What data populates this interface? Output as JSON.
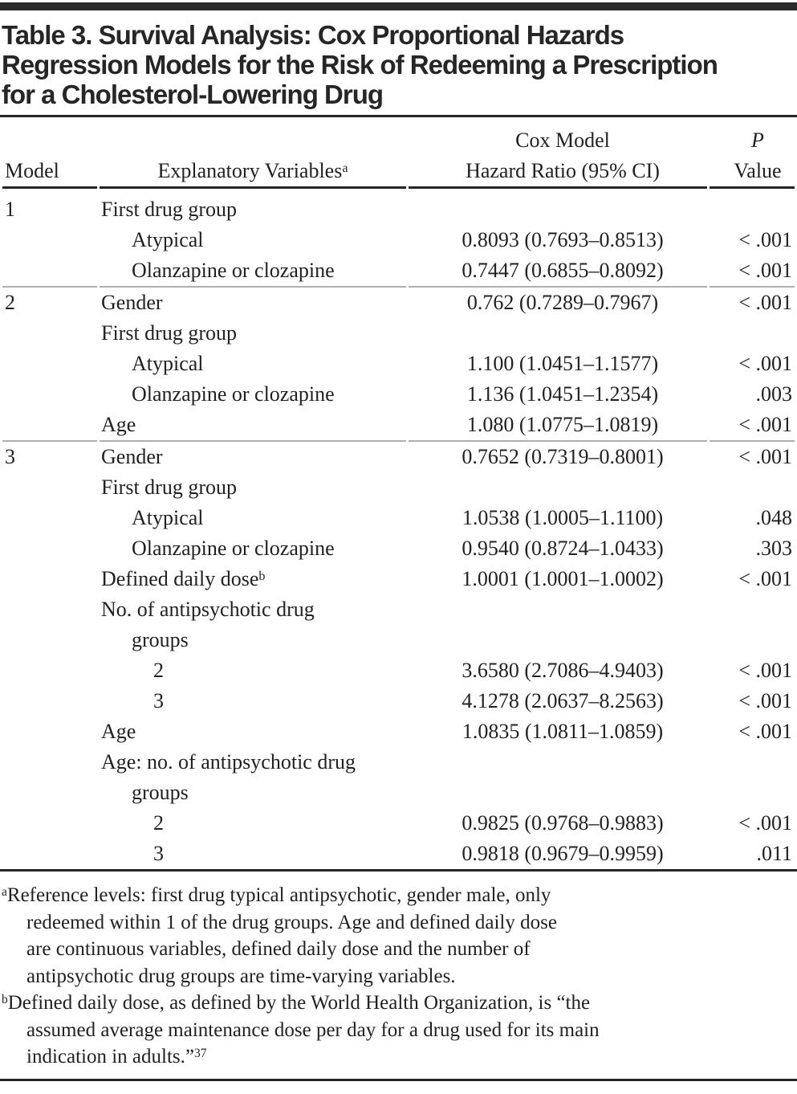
{
  "colors": {
    "text": "#231f20",
    "title": "#262626",
    "rule-dark": "#262626",
    "rule-gray": "#b0b0b0",
    "bar": "#2a2a2a",
    "bg": "#ffffff"
  },
  "table": {
    "title_lines": [
      "Table 3. Survival Analysis: Cox Proportional Hazards",
      "Regression Models for the Risk of Redeeming a Prescription",
      "for a Cholesterol-Lowering Drug"
    ],
    "header": {
      "group_hr": "Cox Model",
      "group_p": "P",
      "col_model": "Model",
      "col_vars": "Explanatory Variables",
      "col_vars_sup": "a",
      "col_hr": "Hazard Ratio (95% CI)",
      "col_p": "Value"
    },
    "rows": [
      {
        "model": "1",
        "label": "First drug group",
        "indent": 0,
        "hr": "",
        "p": "",
        "sep_after": false
      },
      {
        "model": "",
        "label": "Atypical",
        "indent": 1,
        "hr": "0.8093 (0.7693–0.8513)",
        "p": "< .001",
        "sep_after": false
      },
      {
        "model": "",
        "label": "Olanzapine or clozapine",
        "indent": 1,
        "hr": "0.7447 (0.6855–0.8092)",
        "p": "< .001",
        "sep_after": true
      },
      {
        "model": "2",
        "label": "Gender",
        "indent": 0,
        "hr": "0.762 (0.7289–0.7967)",
        "p": "< .001",
        "sep_after": false
      },
      {
        "model": "",
        "label": "First drug group",
        "indent": 0,
        "hr": "",
        "p": "",
        "sep_after": false
      },
      {
        "model": "",
        "label": "Atypical",
        "indent": 1,
        "hr": "1.100 (1.0451–1.1577)",
        "p": "< .001",
        "sep_after": false
      },
      {
        "model": "",
        "label": "Olanzapine or clozapine",
        "indent": 1,
        "hr": "1.136 (1.0451–1.2354)",
        "p": ".003",
        "sep_after": false
      },
      {
        "model": "",
        "label": "Age",
        "indent": 0,
        "hr": "1.080 (1.0775–1.0819)",
        "p": "< .001",
        "sep_after": true
      },
      {
        "model": "3",
        "label": "Gender",
        "indent": 0,
        "hr": "0.7652 (0.7319–0.8001)",
        "p": "< .001",
        "sep_after": false
      },
      {
        "model": "",
        "label": "First drug group",
        "indent": 0,
        "hr": "",
        "p": "",
        "sep_after": false
      },
      {
        "model": "",
        "label": "Atypical",
        "indent": 1,
        "hr": "1.0538 (1.0005–1.1100)",
        "p": ".048",
        "sep_after": false
      },
      {
        "model": "",
        "label": "Olanzapine or clozapine",
        "indent": 1,
        "hr": "0.9540 (0.8724–1.0433)",
        "p": ".303",
        "sep_after": false
      },
      {
        "model": "",
        "label": "Defined daily dose",
        "sup": "b",
        "indent": 0,
        "hr": "1.0001 (1.0001–1.0002)",
        "p": "< .001",
        "sep_after": false
      },
      {
        "model": "",
        "label": "No. of antipsychotic drug",
        "indent": 0,
        "hr": "",
        "p": "",
        "sep_after": false
      },
      {
        "model": "",
        "label": "groups",
        "indent": 1,
        "hr": "",
        "p": "",
        "sep_after": false
      },
      {
        "model": "",
        "label": "2",
        "indent": 2,
        "hr": "3.6580 (2.7086–4.9403)",
        "p": "< .001",
        "sep_after": false
      },
      {
        "model": "",
        "label": "3",
        "indent": 2,
        "hr": "4.1278 (2.0637–8.2563)",
        "p": "< .001",
        "sep_after": false
      },
      {
        "model": "",
        "label": "Age",
        "indent": 0,
        "hr": "1.0835 (1.0811–1.0859)",
        "p": "< .001",
        "sep_after": false
      },
      {
        "model": "",
        "label": "Age: no. of antipsychotic drug",
        "indent": 0,
        "hr": "",
        "p": "",
        "sep_after": false
      },
      {
        "model": "",
        "label": "groups",
        "indent": 1,
        "hr": "",
        "p": "",
        "sep_after": false
      },
      {
        "model": "",
        "label": "2",
        "indent": 2,
        "hr": "0.9825 (0.9768–0.9883)",
        "p": "< .001",
        "sep_after": false
      },
      {
        "model": "",
        "label": "3",
        "indent": 2,
        "hr": "0.9818 (0.9679–0.9959)",
        "p": ".011",
        "sep_after": false
      }
    ]
  },
  "footnotes": [
    {
      "marker": "a",
      "lines": [
        "Reference levels: first drug typical antipsychotic, gender male, only",
        "redeemed within 1 of the drug groups. Age and defined daily dose",
        "are continuous variables, defined daily dose and the number of",
        "antipsychotic drug groups are time-varying variables."
      ]
    },
    {
      "marker": "b",
      "lines": [
        "Defined daily dose, as defined by the World Health Organization, is “the",
        "assumed average maintenance dose per day for a drug used for its main",
        "indication in adults.”"
      ],
      "end_sup": "37"
    }
  ]
}
